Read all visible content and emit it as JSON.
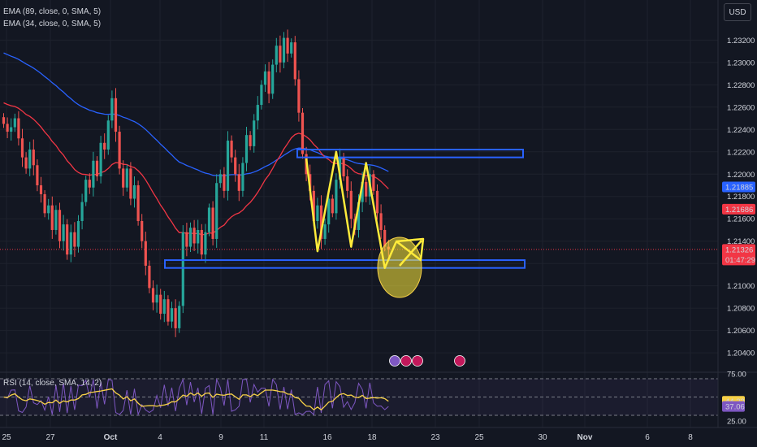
{
  "legend": {
    "ema89": "EMA (89, close, 0, SMA, 5)",
    "ema34": "EMA (34, close, 0, SMA, 5)",
    "rsi": "RSI (14, close, SMA, 14, 2)"
  },
  "currency_button": "USD",
  "colors": {
    "background": "#131722",
    "up": "#26a69a",
    "down": "#ef5350",
    "ema89": "#2962ff",
    "ema34": "#f23645",
    "rsi_line": "#7e57c2",
    "rsi_ma": "#f7d147",
    "box": "#2962ff",
    "zigzag": "#ffeb3b"
  },
  "price_scale": {
    "ticks": [
      "1.23200",
      "1.23000",
      "1.22800",
      "1.22600",
      "1.22400",
      "1.22200",
      "1.22000",
      "1.21800",
      "1.21600",
      "1.21400",
      "1.21000",
      "1.20800",
      "1.20600",
      "1.20400"
    ],
    "badges": [
      {
        "label": "1.21885",
        "color": "#2962ff"
      },
      {
        "label": "1.21686",
        "color": "#f23645"
      },
      {
        "label": "1.21326",
        "sublabel": "01:47:29",
        "color": "#f23645"
      }
    ]
  },
  "rsi_scale": {
    "ticks": [
      "75.00",
      "25.00"
    ],
    "badges": [
      {
        "label": "44.22",
        "color": "#f7d147",
        "text_color": "#131722"
      },
      {
        "label": "37.06",
        "color": "#7e57c2",
        "text_color": "#ffffff"
      }
    ]
  },
  "time_axis": [
    "25",
    "27",
    "Oct",
    "4",
    "9",
    "11",
    "16",
    "18",
    "23",
    "25",
    "30",
    "Nov",
    "6",
    "8"
  ],
  "event_icons": [
    "flash-icon",
    "flag-uk-icon",
    "flag-uk-icon",
    "flag-uk-icon"
  ],
  "chart_data": {
    "type": "candlestick",
    "instrument_quote": "USD",
    "ylim": [
      1.2035,
      1.2345
    ],
    "current_price": 1.21326,
    "countdown": "01:47:29",
    "ema89_last": 1.21885,
    "ema34_last": 1.21686,
    "rsi": {
      "value": 37.06,
      "ma": 44.22,
      "levels": [
        25,
        75
      ]
    },
    "closes": [
      1.2245,
      1.2238,
      1.2242,
      1.225,
      1.2232,
      1.2215,
      1.2205,
      1.2222,
      1.2208,
      1.219,
      1.2182,
      1.2165,
      1.2172,
      1.215,
      1.2168,
      1.214,
      1.2155,
      1.2128,
      1.2148,
      1.2135,
      1.2158,
      1.2175,
      1.2195,
      1.2188,
      1.2212,
      1.2198,
      1.2228,
      1.2222,
      1.2248,
      1.2268,
      1.2238,
      1.2205,
      1.2188,
      1.2205,
      1.2178,
      1.219,
      1.2158,
      1.214,
      1.2118,
      1.2098,
      1.2085,
      1.2092,
      1.2075,
      1.2088,
      1.2068,
      1.208,
      1.2062,
      1.2082,
      1.2148,
      1.2135,
      1.2152,
      1.2138,
      1.215,
      1.2128,
      1.2148,
      1.217,
      1.2142,
      1.2192,
      1.22,
      1.2185,
      1.223,
      1.2215,
      1.22,
      1.2185,
      1.221,
      1.2235,
      1.2225,
      1.2248,
      1.2262,
      1.228,
      1.2292,
      1.2272,
      1.2298,
      1.2315,
      1.23,
      1.2322,
      1.2308,
      1.2318,
      1.2285,
      1.2255,
      1.2218,
      1.22,
      1.2185,
      1.2158,
      1.2172,
      1.2142,
      1.2155,
      1.2178,
      1.2165,
      1.2195,
      1.2215,
      1.2198,
      1.2185,
      1.216,
      1.215,
      1.2175,
      1.2193,
      1.218,
      1.22,
      1.2185,
      1.2165,
      1.215,
      1.2135,
      1.21326
    ],
    "annotations": {
      "resistance_zone": [
        1.2215,
        1.2222
      ],
      "support_zone": [
        1.2116,
        1.2123
      ],
      "zigzag": [
        [
          81,
          1.2214
        ],
        [
          84,
          1.2131
        ],
        [
          89,
          1.222
        ],
        [
          93,
          1.2135
        ],
        [
          97,
          1.221
        ],
        [
          102,
          1.2116
        ],
        [
          105,
          1.2139
        ]
      ]
    }
  }
}
